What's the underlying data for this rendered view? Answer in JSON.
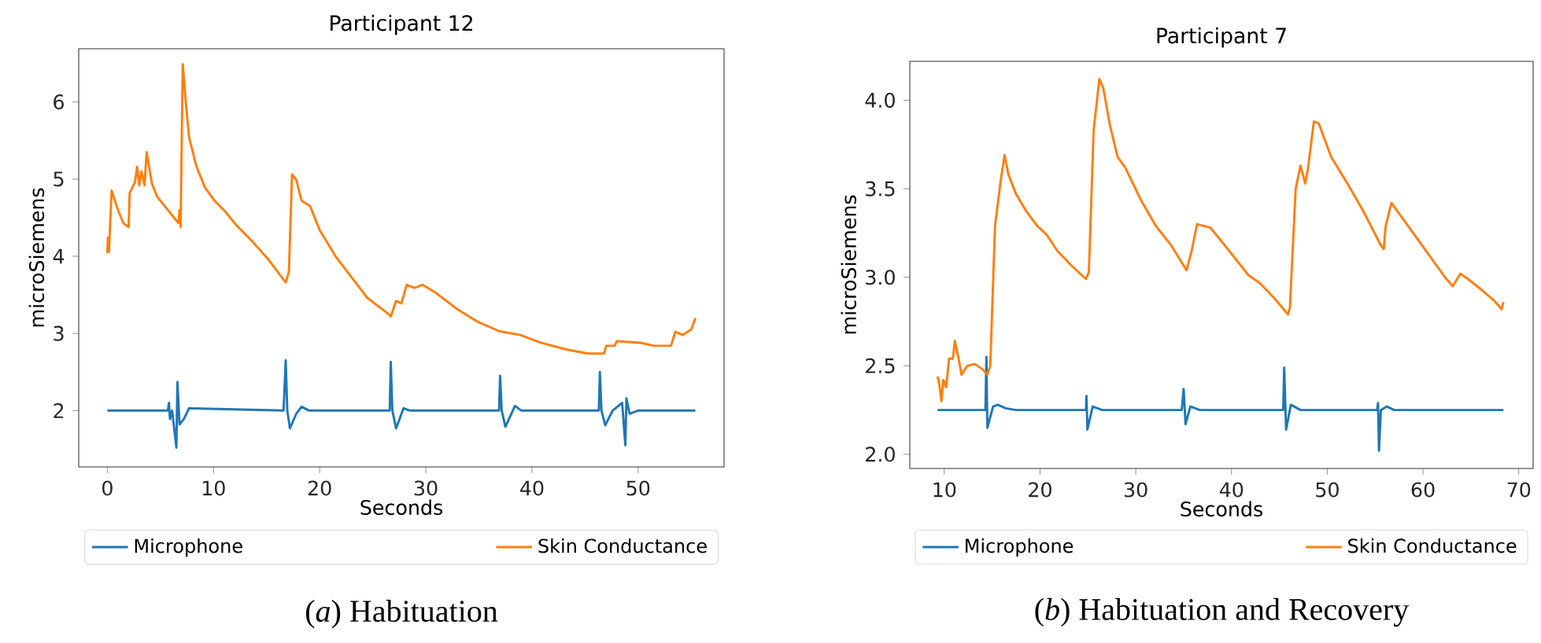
{
  "chart_data": [
    {
      "type": "line",
      "title": "Participant 12",
      "xlabel": "Seconds",
      "ylabel": "microSiemens",
      "xlim": [
        -2.7,
        58.1
      ],
      "ylim": [
        1.27,
        6.69
      ],
      "xticks": [
        0,
        10,
        20,
        30,
        40,
        50
      ],
      "yticks": [
        2,
        3,
        4,
        5,
        6
      ],
      "grid": false,
      "legend": "bottom",
      "marker": "none",
      "line_style": "solid",
      "annotations": [
        "(*a*) Habituation"
      ],
      "series": [
        {
          "name": "Microphone",
          "color": "#1f77b4",
          "x": [
            0,
            5.7,
            5.8,
            5.9,
            6.1,
            6.5,
            6.6,
            6.8,
            7.2,
            7.7,
            16.6,
            16.8,
            16.95,
            17.2,
            17.8,
            18.3,
            19,
            26.6,
            26.7,
            26.85,
            27.2,
            27.9,
            28.5,
            36.9,
            37.0,
            37.15,
            37.5,
            38.4,
            39,
            46.3,
            46.4,
            46.55,
            46.9,
            47.6,
            48.5,
            48.8,
            48.9,
            49.2,
            50,
            55.4
          ],
          "values": [
            2.0,
            2.0,
            2.1,
            1.89,
            2.0,
            1.52,
            2.37,
            1.82,
            1.89,
            2.03,
            2.0,
            2.65,
            2.0,
            1.77,
            1.96,
            2.05,
            2.0,
            2.0,
            2.63,
            2.0,
            1.77,
            2.03,
            2.0,
            2.0,
            2.45,
            2.0,
            1.79,
            2.06,
            2.0,
            2.0,
            2.5,
            2.0,
            1.81,
            2.0,
            2.1,
            1.55,
            2.16,
            1.96,
            2.0,
            2.0
          ]
        },
        {
          "name": "Skin Conductance",
          "color": "#ff7f0e",
          "x": [
            0,
            0.05,
            0.15,
            0.4,
            1.0,
            1.5,
            2.0,
            2.1,
            2.6,
            2.8,
            3.0,
            3.2,
            3.5,
            3.7,
            4.2,
            4.7,
            5.7,
            6.7,
            6.8,
            6.9,
            7.1,
            7.4,
            7.7,
            8.4,
            9.2,
            10.1,
            11.1,
            12.1,
            13.6,
            15.1,
            16.8,
            17.1,
            17.4,
            17.8,
            18.3,
            19.1,
            20.0,
            21.5,
            23.0,
            24.5,
            26.5,
            26.7,
            27.2,
            27.7,
            28.2,
            28.9,
            29.7,
            30.9,
            32.9,
            34.9,
            36.9,
            38.9,
            40.8,
            43.3,
            45.3,
            46.8,
            47.0,
            47.8,
            48.0,
            50.2,
            51.5,
            53.1,
            53.5,
            54.2,
            55.0,
            55.4
          ],
          "values": [
            4.04,
            4.24,
            4.06,
            4.85,
            4.6,
            4.43,
            4.38,
            4.82,
            4.96,
            5.16,
            4.92,
            5.1,
            4.92,
            5.35,
            4.94,
            4.77,
            4.6,
            4.43,
            4.6,
            4.38,
            6.49,
            5.98,
            5.54,
            5.16,
            4.89,
            4.72,
            4.58,
            4.41,
            4.2,
            3.97,
            3.66,
            3.8,
            5.06,
            4.99,
            4.72,
            4.65,
            4.34,
            4.0,
            3.73,
            3.46,
            3.25,
            3.22,
            3.42,
            3.39,
            3.63,
            3.59,
            3.63,
            3.53,
            3.32,
            3.15,
            3.03,
            2.98,
            2.88,
            2.79,
            2.74,
            2.74,
            2.84,
            2.84,
            2.9,
            2.88,
            2.84,
            2.84,
            3.02,
            2.98,
            3.05,
            3.2
          ]
        }
      ]
    },
    {
      "type": "line",
      "title": "Participant 7",
      "xlabel": "Seconds",
      "ylabel": "microSiemens",
      "xlim": [
        6.4,
        71.5
      ],
      "ylim": [
        1.92,
        4.22
      ],
      "xticks": [
        10,
        20,
        30,
        40,
        50,
        60,
        70
      ],
      "yticks": [
        {
          "value": 2,
          "label": "2.0"
        },
        2.5,
        {
          "value": 3,
          "label": "3.0"
        },
        3.5,
        {
          "value": 4,
          "label": "4.0"
        }
      ],
      "grid": false,
      "legend": "bottom",
      "marker": "none",
      "line_style": "solid",
      "annotations": [
        "(*b*) Habituation and Recovery"
      ],
      "series": [
        {
          "name": "Microphone",
          "color": "#1f77b4",
          "x": [
            9.3,
            14.3,
            14.4,
            14.5,
            15.1,
            15.6,
            16.4,
            17.5,
            24.8,
            24.85,
            24.95,
            25.5,
            26.5,
            34.8,
            35.0,
            35.2,
            35.7,
            36.7,
            45.4,
            45.5,
            45.7,
            46.2,
            47.2,
            55.2,
            55.3,
            55.4,
            55.6,
            56.2,
            57.0,
            68.4
          ],
          "values": [
            2.25,
            2.25,
            2.55,
            2.15,
            2.27,
            2.28,
            2.26,
            2.25,
            2.25,
            2.33,
            2.14,
            2.27,
            2.25,
            2.25,
            2.37,
            2.17,
            2.27,
            2.25,
            2.25,
            2.49,
            2.14,
            2.28,
            2.25,
            2.25,
            2.29,
            2.02,
            2.25,
            2.27,
            2.25,
            2.25
          ]
        },
        {
          "name": "Skin Conductance",
          "color": "#ff7f0e",
          "x": [
            9.3,
            9.5,
            9.7,
            9.9,
            10.2,
            10.5,
            10.9,
            11.1,
            11.5,
            11.8,
            12.4,
            13.2,
            14.0,
            14.5,
            14.8,
            15.3,
            15.9,
            16.3,
            16.7,
            17.5,
            18.6,
            19.7,
            20.7,
            21.8,
            23.4,
            24.8,
            25.1,
            25.6,
            26.2,
            26.6,
            27.3,
            28.1,
            28.9,
            30.5,
            32.1,
            33.7,
            35.3,
            35.8,
            36.4,
            37.8,
            39.6,
            41.8,
            42.9,
            44.5,
            45.9,
            46.1,
            46.7,
            47.2,
            47.7,
            48.0,
            48.6,
            49.1,
            50.4,
            52.1,
            53.7,
            55.6,
            55.9,
            56.1,
            56.7,
            57.5,
            59.1,
            60.7,
            62.3,
            63.1,
            63.9,
            64.7,
            66.1,
            67.4,
            68.2,
            68.4
          ],
          "values": [
            2.44,
            2.39,
            2.3,
            2.42,
            2.38,
            2.54,
            2.54,
            2.64,
            2.54,
            2.45,
            2.5,
            2.51,
            2.48,
            2.45,
            2.5,
            3.29,
            3.55,
            3.69,
            3.58,
            3.47,
            3.37,
            3.29,
            3.24,
            3.15,
            3.06,
            2.99,
            3.03,
            3.83,
            4.12,
            4.07,
            3.86,
            3.68,
            3.62,
            3.44,
            3.29,
            3.18,
            3.04,
            3.14,
            3.3,
            3.28,
            3.16,
            3.01,
            2.97,
            2.88,
            2.79,
            2.83,
            3.5,
            3.63,
            3.53,
            3.62,
            3.88,
            3.87,
            3.68,
            3.53,
            3.38,
            3.18,
            3.16,
            3.29,
            3.42,
            3.36,
            3.24,
            3.12,
            3.0,
            2.95,
            3.02,
            2.99,
            2.93,
            2.87,
            2.82,
            2.86
          ]
        }
      ]
    }
  ]
}
